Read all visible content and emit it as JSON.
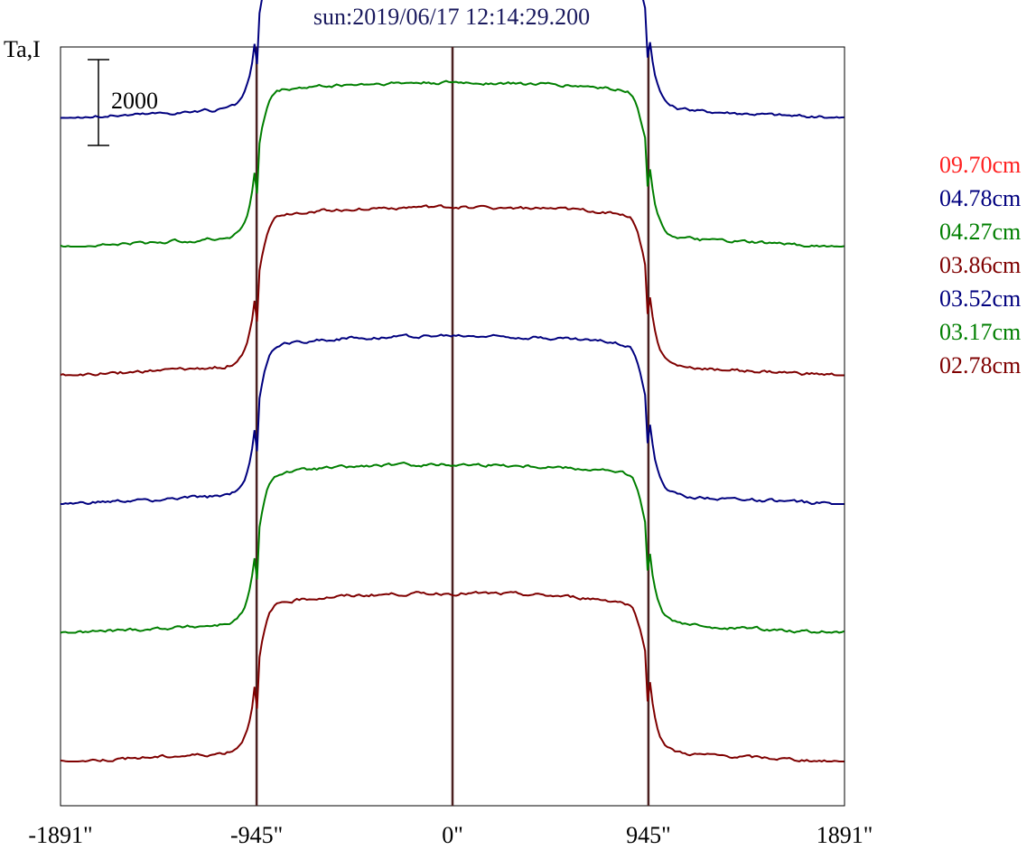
{
  "chart_data": {
    "type": "line",
    "title": "sun:2019/06/17 12:14:29.200",
    "ylabel": "Ta,I",
    "x_ticks": [
      {
        "value": -1891,
        "label": "-1891\""
      },
      {
        "value": -945,
        "label": "-945\""
      },
      {
        "value": 0,
        "label": "0\""
      },
      {
        "value": 945,
        "label": "945\""
      },
      {
        "value": 1891,
        "label": "1891\""
      }
    ],
    "xlim": [
      -1891,
      1891
    ],
    "vertical_lines": [
      -945,
      0,
      945
    ],
    "scale_bar": {
      "value": 2000,
      "label": "2000"
    },
    "series": [
      {
        "name": "09.70cm",
        "color": "#ff2020",
        "offset": 18000,
        "amplitude": 3300,
        "limb": 0.0,
        "noise": 1
      },
      {
        "name": "04.78cm",
        "color": "#00007f",
        "offset": 15000,
        "amplitude": 3600,
        "limb": 0.35,
        "noise": 2
      },
      {
        "name": "04.27cm",
        "color": "#007f00",
        "offset": 12000,
        "amplitude": 3600,
        "limb": 0.4,
        "noise": 3
      },
      {
        "name": "03.86cm",
        "color": "#7f0000",
        "offset": 9000,
        "amplitude": 3700,
        "limb": 0.4,
        "noise": 4
      },
      {
        "name": "03.52cm",
        "color": "#00007f",
        "offset": 6000,
        "amplitude": 3700,
        "limb": 0.45,
        "noise": 5
      },
      {
        "name": "03.17cm",
        "color": "#007f00",
        "offset": 3000,
        "amplitude": 3700,
        "limb": 0.45,
        "noise": 6
      },
      {
        "name": "02.78cm",
        "color": "#7f0000",
        "offset": 0,
        "amplitude": 3700,
        "limb": 0.5,
        "noise": 7
      }
    ]
  }
}
